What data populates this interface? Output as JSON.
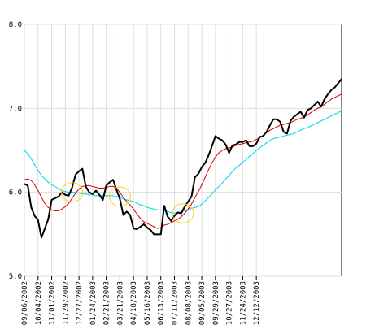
{
  "chart_data": {
    "type": "line",
    "title": "",
    "xlabel": "",
    "ylabel": "",
    "ylim": [
      5.0,
      8.0
    ],
    "y_ticks": [
      5.0,
      6.0,
      7.0,
      8.0
    ],
    "y_tick_labels": [
      "5.0",
      "6.0",
      "7.0",
      "8.0"
    ],
    "x_tick_labels": [
      "09/06/2002",
      "10/04/2002",
      "11/01/2002",
      "11/29/2002",
      "12/27/2002",
      "01/24/2003",
      "02/21/2003",
      "03/21/2003",
      "04/18/2003",
      "05/16/2003",
      "06/13/2003",
      "07/11/2003",
      "08/08/2003",
      "09/05/2003",
      "09/29/2003",
      "10/27/2003",
      "11/24/2003",
      "12/12/2003"
    ],
    "x_tick_positions": [
      0,
      4,
      8,
      12,
      16,
      20,
      24,
      28,
      32,
      36,
      40,
      44,
      48,
      52,
      56,
      60,
      64,
      68
    ],
    "grid": true,
    "legend": "none",
    "series": [
      {
        "color": "#000000",
        "values": [
          6.1,
          6.08,
          5.82,
          5.72,
          5.67,
          5.46,
          5.57,
          5.68,
          5.91,
          5.93,
          5.95,
          6.0,
          5.97,
          5.96,
          6.06,
          6.21,
          6.25,
          6.28,
          6.07,
          6.0,
          5.98,
          6.02,
          5.97,
          5.91,
          6.08,
          6.12,
          6.15,
          6.03,
          5.92,
          5.73,
          5.77,
          5.73,
          5.57,
          5.56,
          5.59,
          5.62,
          5.58,
          5.55,
          5.5,
          5.5,
          5.5,
          5.84,
          5.71,
          5.66,
          5.72,
          5.76,
          5.75,
          5.83,
          5.89,
          5.95,
          6.18,
          6.22,
          6.3,
          6.35,
          6.44,
          6.55,
          6.67,
          6.64,
          6.62,
          6.57,
          6.47,
          6.56,
          6.57,
          6.6,
          6.6,
          6.62,
          6.55,
          6.55,
          6.58,
          6.66,
          6.67,
          6.72,
          6.8,
          6.87,
          6.87,
          6.84,
          6.72,
          6.7,
          6.85,
          6.9,
          6.93,
          6.96,
          6.89,
          6.98,
          7.0,
          7.04,
          7.08,
          7.02,
          7.11,
          7.17,
          7.22,
          7.25,
          7.3,
          7.35
        ]
      },
      {
        "color": "#dd0000",
        "values": [
          6.15,
          6.16,
          6.14,
          6.09,
          6.02,
          5.94,
          5.87,
          5.82,
          5.79,
          5.78,
          5.78,
          5.8,
          5.83,
          5.87,
          5.93,
          5.99,
          6.04,
          6.07,
          6.08,
          6.08,
          6.07,
          6.06,
          6.05,
          6.05,
          6.06,
          6.07,
          6.07,
          6.05,
          6.0,
          5.94,
          5.89,
          5.85,
          5.8,
          5.74,
          5.69,
          5.65,
          5.63,
          5.61,
          5.59,
          5.57,
          5.58,
          5.61,
          5.62,
          5.64,
          5.66,
          5.68,
          5.71,
          5.75,
          5.8,
          5.86,
          5.94,
          6.01,
          6.09,
          6.18,
          6.27,
          6.35,
          6.42,
          6.47,
          6.5,
          6.52,
          6.53,
          6.54,
          6.56,
          6.57,
          6.58,
          6.59,
          6.6,
          6.61,
          6.63,
          6.65,
          6.68,
          6.71,
          6.74,
          6.76,
          6.78,
          6.8,
          6.81,
          6.82,
          6.83,
          6.85,
          6.87,
          6.88,
          6.9,
          6.92,
          6.95,
          6.98,
          7.0,
          7.02,
          7.05,
          7.08,
          7.11,
          7.13,
          7.15,
          7.17
        ]
      },
      {
        "color": "#00d8e8",
        "values": [
          6.5,
          6.46,
          6.4,
          6.33,
          6.26,
          6.2,
          6.16,
          6.12,
          6.09,
          6.07,
          6.04,
          6.02,
          6.01,
          6.0,
          6.0,
          6.0,
          5.99,
          5.98,
          5.98,
          5.97,
          5.97,
          5.96,
          5.96,
          5.96,
          5.96,
          5.96,
          5.96,
          5.95,
          5.94,
          5.92,
          5.91,
          5.9,
          5.89,
          5.87,
          5.85,
          5.84,
          5.82,
          5.81,
          5.8,
          5.79,
          5.79,
          5.78,
          5.77,
          5.76,
          5.75,
          5.76,
          5.77,
          5.78,
          5.79,
          5.81,
          5.82,
          5.83,
          5.86,
          5.9,
          5.94,
          5.98,
          6.03,
          6.07,
          6.11,
          6.16,
          6.2,
          6.25,
          6.29,
          6.32,
          6.36,
          6.39,
          6.43,
          6.46,
          6.5,
          6.53,
          6.56,
          6.59,
          6.62,
          6.64,
          6.65,
          6.66,
          6.67,
          6.68,
          6.69,
          6.7,
          6.72,
          6.74,
          6.76,
          6.77,
          6.79,
          6.81,
          6.83,
          6.85,
          6.87,
          6.89,
          6.91,
          6.93,
          6.95,
          6.97
        ]
      }
    ],
    "annotations": [
      {
        "type": "ellipse",
        "color": "#ffd21a",
        "cx": 14,
        "cy": 6.0,
        "rx": 3.1,
        "ry": 0.115
      },
      {
        "type": "ellipse",
        "color": "#ffd21a",
        "cx": 28,
        "cy": 5.95,
        "rx": 3.1,
        "ry": 0.115
      },
      {
        "type": "ellipse",
        "color": "#ffd21a",
        "cx": 46.5,
        "cy": 5.75,
        "rx": 3.1,
        "ry": 0.115
      }
    ]
  }
}
